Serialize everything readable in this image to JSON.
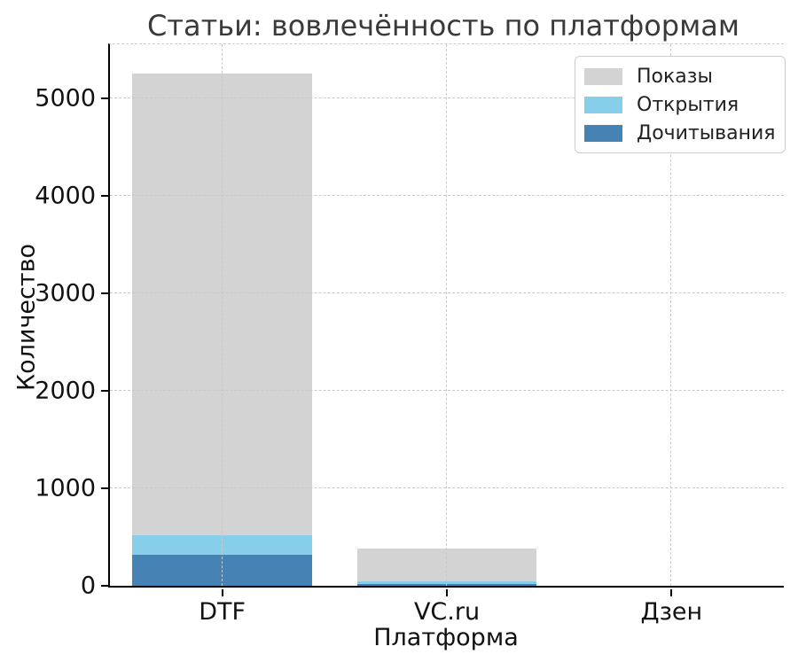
{
  "chart_data": {
    "type": "bar",
    "bar_mode": "overlay",
    "title": "Статьи: вовлечённость по платформам",
    "xlabel": "Платформа",
    "ylabel": "Количество",
    "categories": [
      "DTF",
      "VC.ru",
      "Дзен"
    ],
    "series": [
      {
        "name": "Показы",
        "color": "#d3d3d3",
        "values": [
          5250,
          380,
          0
        ]
      },
      {
        "name": "Открытия",
        "color": "#87ceeb",
        "values": [
          520,
          45,
          0
        ]
      },
      {
        "name": "Дочитывания",
        "color": "#4682b4",
        "values": [
          320,
          15,
          0
        ]
      }
    ],
    "ylim": [
      0,
      5550
    ],
    "yticks": [
      0,
      1000,
      2000,
      3000,
      4000,
      5000
    ],
    "grid": true,
    "grid_style": "dashed",
    "grid_above_bars": true,
    "legend_position": "upper right",
    "bar_width_fraction": 0.8
  }
}
